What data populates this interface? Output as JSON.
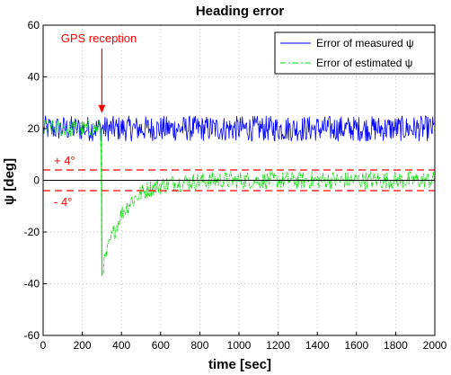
{
  "chart_data": {
    "type": "line",
    "title": "Heading error",
    "xlabel": "time [sec]",
    "ylabel": "ψ [deg]",
    "xlim": [
      0,
      2000
    ],
    "ylim": [
      -60,
      60
    ],
    "xticks": [
      0,
      200,
      400,
      600,
      800,
      1000,
      1200,
      1400,
      1600,
      1800,
      2000
    ],
    "yticks": [
      -60,
      -40,
      -20,
      0,
      20,
      40,
      60
    ],
    "grid": true,
    "legend_position": "top-right",
    "series": [
      {
        "name": "Error of measured ψ",
        "color": "#0000ff",
        "style": "solid",
        "noise_band": 5,
        "x": [
          0,
          300,
          2000
        ],
        "y": [
          20,
          20,
          20
        ]
      },
      {
        "name": "Error of estimated ψ",
        "color": "#00dd00",
        "style": "dash-dot",
        "noise_band": 3.5,
        "x": [
          0,
          295,
          300,
          350,
          400,
          450,
          500,
          550,
          600,
          650,
          700,
          800,
          900,
          1000,
          1200,
          1500,
          2000
        ],
        "y": [
          20,
          20,
          -35,
          -22,
          -13,
          -8,
          -5,
          -3,
          -2,
          -1.2,
          -0.8,
          -0.3,
          0,
          0,
          0,
          0,
          0
        ]
      }
    ],
    "reference_lines": [
      {
        "y": 4,
        "color": "#ff0000",
        "style": "dashed",
        "label": "+ 4°"
      },
      {
        "y": -4,
        "color": "#ff0000",
        "style": "dashed",
        "label": "- 4°"
      },
      {
        "y": 0,
        "color": "#000000",
        "style": "solid"
      }
    ],
    "annotations": [
      {
        "text": "GPS reception",
        "color": "#ff0000",
        "x": 300,
        "arrow_to_y": 26
      }
    ]
  }
}
